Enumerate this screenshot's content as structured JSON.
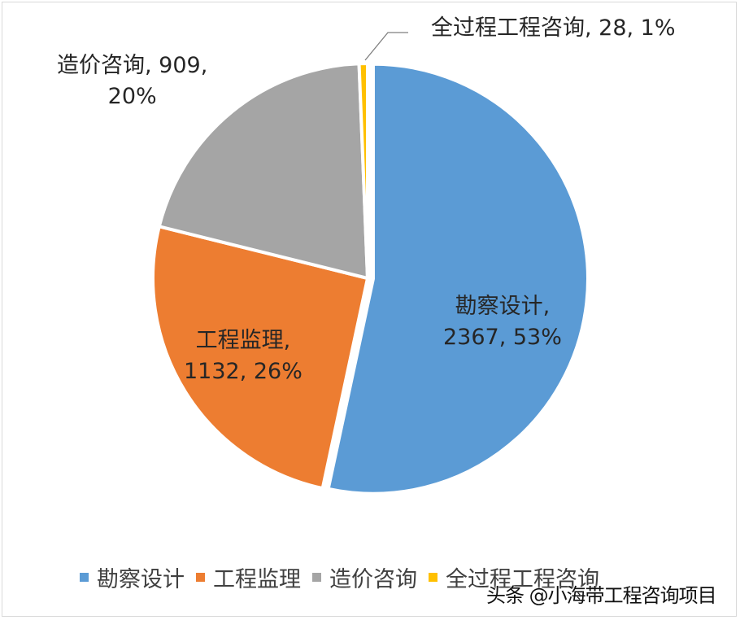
{
  "chart_data": {
    "type": "pie",
    "title": "",
    "categories": [
      "勘察设计",
      "工程监理",
      "造价咨询",
      "全过程工程咨询"
    ],
    "values": [
      2367,
      1132,
      909,
      28
    ],
    "percentages": [
      53,
      26,
      20,
      1
    ],
    "colors": [
      "#5B9BD5",
      "#ED7D31",
      "#A5A5A5",
      "#FFC000"
    ],
    "start_angle": "12 o'clock, clockwise",
    "exploded": [
      "勘察设计"
    ],
    "legend_position": "bottom",
    "data_labels": [
      {
        "line1": "勘察设计,",
        "line2": "2367, 53%"
      },
      {
        "line1": "工程监理,",
        "line2": "1132, 26%"
      },
      {
        "line1": "造价咨询, 909,",
        "line2": "20%"
      },
      {
        "line1": "全过程工程咨询, 28, 1%",
        "line2": ""
      }
    ]
  },
  "legend": {
    "items": [
      {
        "label": "勘察设计",
        "color": "#5B9BD5"
      },
      {
        "label": "工程监理",
        "color": "#ED7D31"
      },
      {
        "label": "造价咨询",
        "color": "#A5A5A5"
      },
      {
        "label": "全过程工程咨询",
        "color": "#FFC000"
      }
    ]
  },
  "watermark": "头条 @小海带工程咨询项目"
}
